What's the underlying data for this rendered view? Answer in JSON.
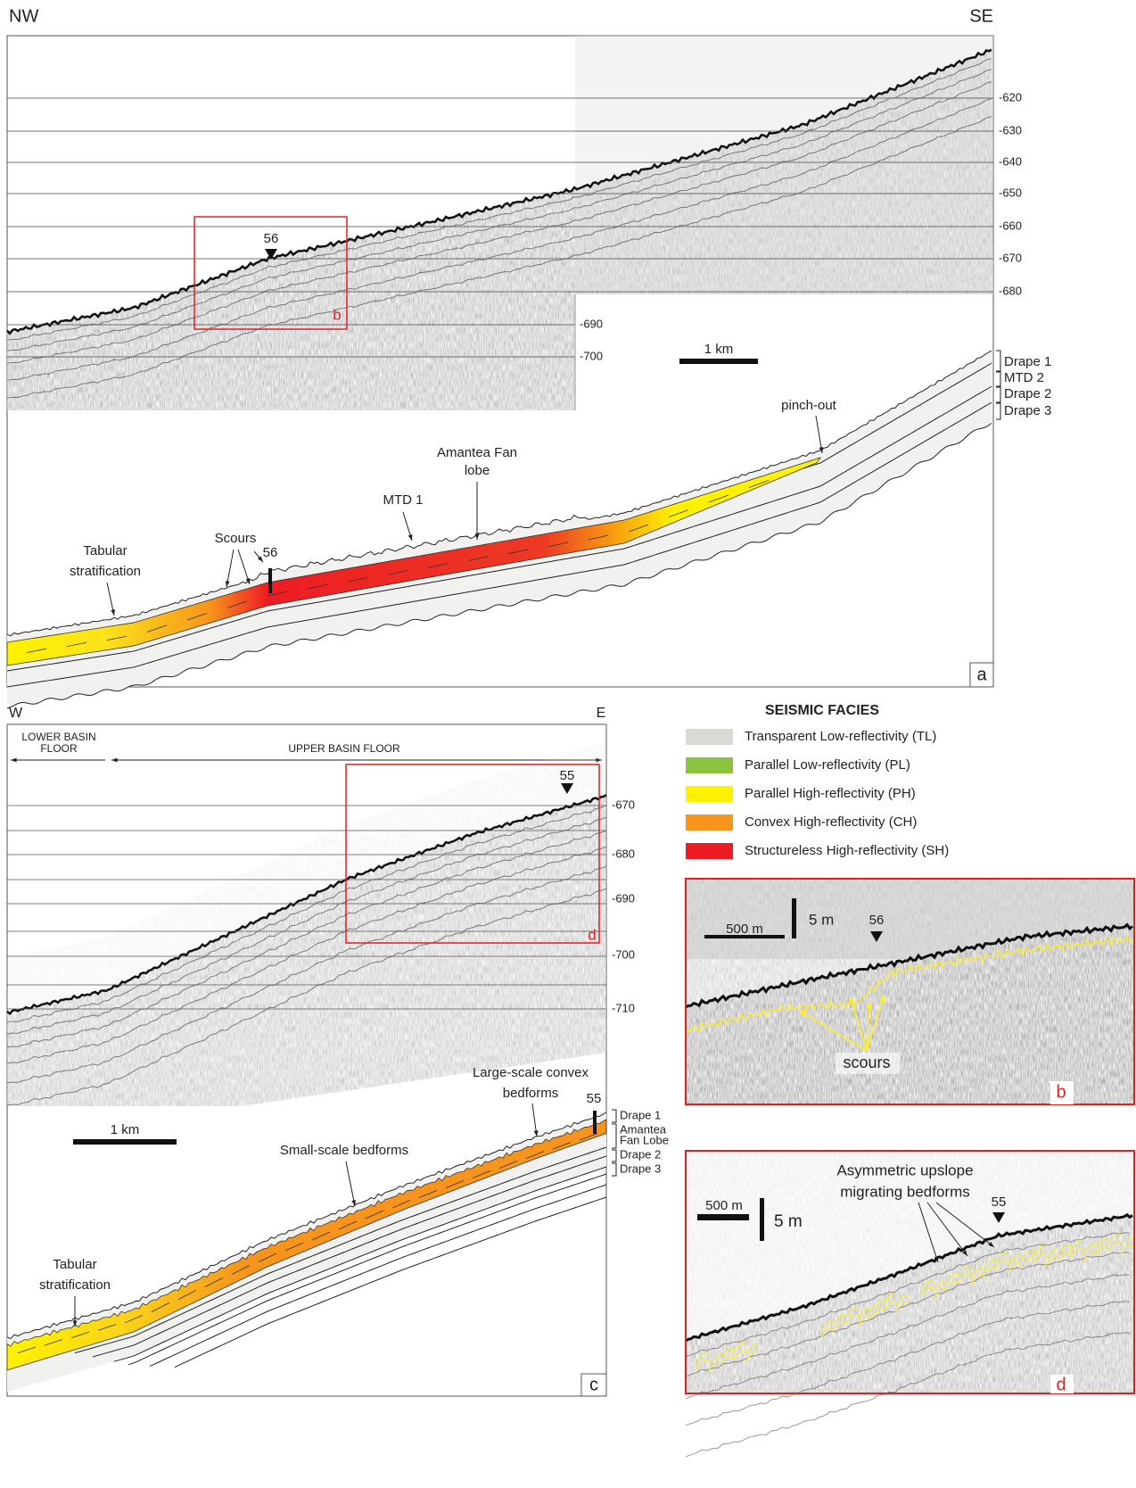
{
  "panel_a": {
    "orientation": [
      "NW",
      "SE"
    ],
    "depth_labels": [
      "-620",
      "-630",
      "-640",
      "-650",
      "-660",
      "-670",
      "-680",
      "-690",
      "-700"
    ],
    "marker": "56",
    "inset_label": "b",
    "scale": "1 km",
    "units": [
      "Drape 1",
      "MTD 2",
      "Drape 2",
      "Drape 3"
    ],
    "annotations": {
      "pinch_out": "pinch-out",
      "fan_lobe": [
        "Amantea Fan",
        "lobe"
      ],
      "mtd": "MTD 1",
      "scours": "Scours",
      "core": "56",
      "tabular": [
        "Tabular",
        "stratification"
      ]
    },
    "panel_label": "a"
  },
  "panel_c": {
    "orientation": [
      "W",
      "E"
    ],
    "zones": {
      "lower": [
        "LOWER BASIN",
        "FLOOR"
      ],
      "upper": "UPPER BASIN FLOOR"
    },
    "depth_labels": [
      "-670",
      "-680",
      "-690",
      "-700",
      "-710"
    ],
    "marker": "55",
    "inset_label": "d",
    "scale": "1 km",
    "units": [
      "Drape 1",
      "Amantea",
      "Fan Lobe",
      "Drape 2",
      "Drape 3"
    ],
    "annotations": {
      "large_bedforms": [
        "Large-scale convex",
        "bedforms"
      ],
      "core": "55",
      "small_bedforms": "Small-scale bedforms",
      "tabular": [
        "Tabular",
        "stratification"
      ]
    },
    "panel_label": "c"
  },
  "legend": {
    "title": "SEISMIC FACIES",
    "items": [
      {
        "label": "Transparent Low-reflectivity (TL)",
        "color": "#d9d9d5"
      },
      {
        "label": "Parallel Low-reflectivity (PL)",
        "color": "#8cc43f"
      },
      {
        "label": "Parallel High-reflectivity (PH)",
        "color": "#fff200"
      },
      {
        "label": "Convex High-reflectivity (CH)",
        "color": "#f7941d"
      },
      {
        "label": "Structureless High-reflectivity (SH)",
        "color": "#ed1c24"
      }
    ]
  },
  "panel_b": {
    "scale_h": "500 m",
    "scale_v": "5 m",
    "marker": "56",
    "annotation": "scours",
    "panel_label": "b"
  },
  "panel_d": {
    "annotation": [
      "Asymmetric upslope",
      "migrating bedforms"
    ],
    "scale_h": "500 m",
    "scale_v": "5 m",
    "marker": "55",
    "panel_label": "d"
  }
}
